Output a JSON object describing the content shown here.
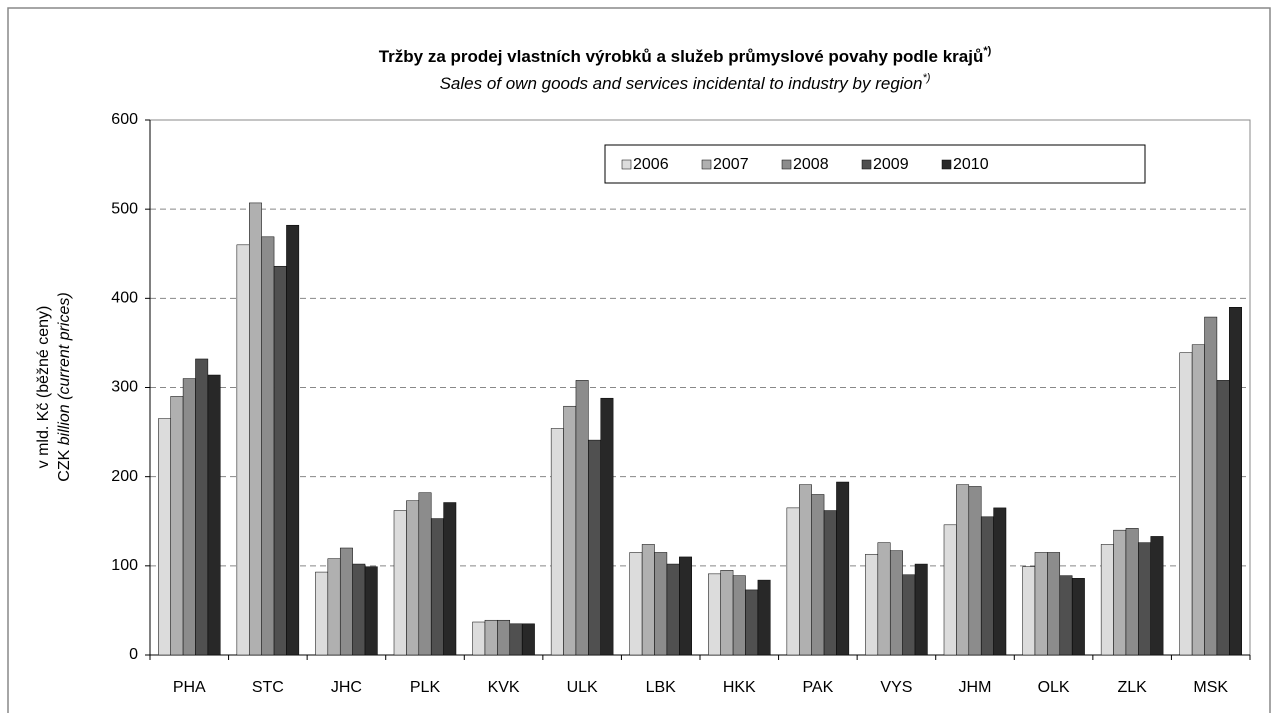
{
  "chart_data": {
    "type": "bar",
    "title": "Tržby za prodej vlastních výrobků a služeb průmyslové povahy podle krajů",
    "title_superscript": "*)",
    "subtitle": "Sales of own goods and services incidental to industry by region",
    "subtitle_superscript": "*)",
    "ylabel": [
      "v mld. Kč (běžné ceny)",
      "CZK",
      "billion (current prices)"
    ],
    "categories": [
      "PHA",
      "STC",
      "JHC",
      "PLK",
      "KVK",
      "ULK",
      "LBK",
      "HKK",
      "PAK",
      "VYS",
      "JHM",
      "OLK",
      "ZLK",
      "MSK"
    ],
    "series": [
      {
        "name": "2006",
        "color": "#dcdcdc",
        "values": [
          265,
          460,
          93,
          162,
          37,
          254,
          115,
          91,
          165,
          113,
          146,
          99,
          124,
          339
        ]
      },
      {
        "name": "2007",
        "color": "#b0b0b0",
        "values": [
          290,
          507,
          108,
          173,
          39,
          279,
          124,
          95,
          191,
          126,
          191,
          115,
          140,
          348
        ]
      },
      {
        "name": "2008",
        "color": "#8c8c8c",
        "values": [
          310,
          469,
          120,
          182,
          39,
          308,
          115,
          89,
          180,
          117,
          189,
          115,
          142,
          379
        ]
      },
      {
        "name": "2009",
        "color": "#505050",
        "values": [
          332,
          436,
          102,
          153,
          35,
          241,
          102,
          73,
          162,
          90,
          155,
          89,
          126,
          308
        ]
      },
      {
        "name": "2010",
        "color": "#282828",
        "values": [
          314,
          482,
          99,
          171,
          35,
          288,
          110,
          84,
          194,
          102,
          165,
          86,
          133,
          390
        ]
      }
    ],
    "ylim": [
      0,
      600
    ],
    "yticks": [
      0,
      100,
      200,
      300,
      400,
      500,
      600
    ],
    "grid": true,
    "legend": "top-right"
  }
}
